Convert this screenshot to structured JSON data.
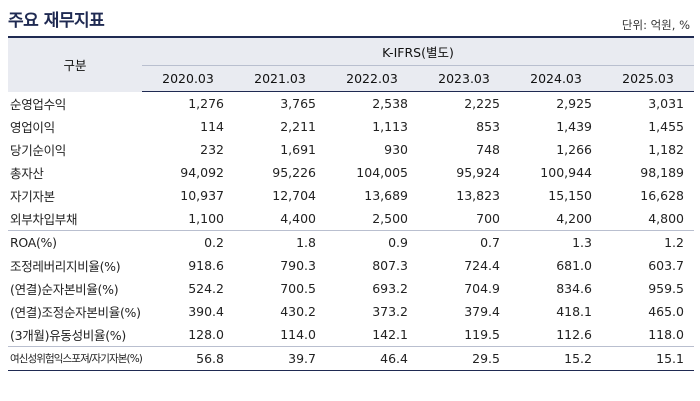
{
  "title": "주요 재무지표",
  "unit": "단위: 억원, %",
  "header": {
    "label_col": "구분",
    "group": "K-IFRS(별도)",
    "years": [
      "2020.03",
      "2021.03",
      "2022.03",
      "2023.03",
      "2024.03",
      "2025.03"
    ]
  },
  "rows": [
    {
      "label": "순영업수익",
      "values": [
        "1,276",
        "3,765",
        "2,538",
        "2,225",
        "2,925",
        "3,031"
      ]
    },
    {
      "label": "영업이익",
      "values": [
        "114",
        "2,211",
        "1,113",
        "853",
        "1,439",
        "1,455"
      ]
    },
    {
      "label": "당기순이익",
      "values": [
        "232",
        "1,691",
        "930",
        "748",
        "1,266",
        "1,182"
      ]
    },
    {
      "label": "총자산",
      "values": [
        "94,092",
        "95,226",
        "104,005",
        "95,924",
        "100,944",
        "98,189"
      ]
    },
    {
      "label": "자기자본",
      "values": [
        "10,937",
        "12,704",
        "13,689",
        "13,823",
        "15,150",
        "16,628"
      ]
    },
    {
      "label": "외부차입부채",
      "values": [
        "1,100",
        "4,400",
        "2,500",
        "700",
        "4,200",
        "4,800"
      ]
    },
    {
      "label": "ROA(%)",
      "values": [
        "0.2",
        "1.8",
        "0.9",
        "0.7",
        "1.3",
        "1.2"
      ]
    },
    {
      "label": "조정레버리지비율(%)",
      "values": [
        "918.6",
        "790.3",
        "807.3",
        "724.4",
        "681.0",
        "603.7"
      ]
    },
    {
      "label": "(연결)순자본비율(%)",
      "values": [
        "524.2",
        "700.5",
        "693.2",
        "704.9",
        "834.6",
        "959.5"
      ]
    },
    {
      "label": "(연결)조정순자본비율(%)",
      "values": [
        "390.4",
        "430.2",
        "373.2",
        "379.4",
        "418.1",
        "465.0"
      ]
    },
    {
      "label": "(3개월)유동성비율(%)",
      "values": [
        "128.0",
        "114.0",
        "142.1",
        "119.5",
        "112.6",
        "118.0"
      ]
    },
    {
      "label": "여신성위험익스포져/자기자본(%)",
      "values": [
        "56.8",
        "39.7",
        "46.4",
        "29.5",
        "15.2",
        "15.1"
      ]
    }
  ]
}
